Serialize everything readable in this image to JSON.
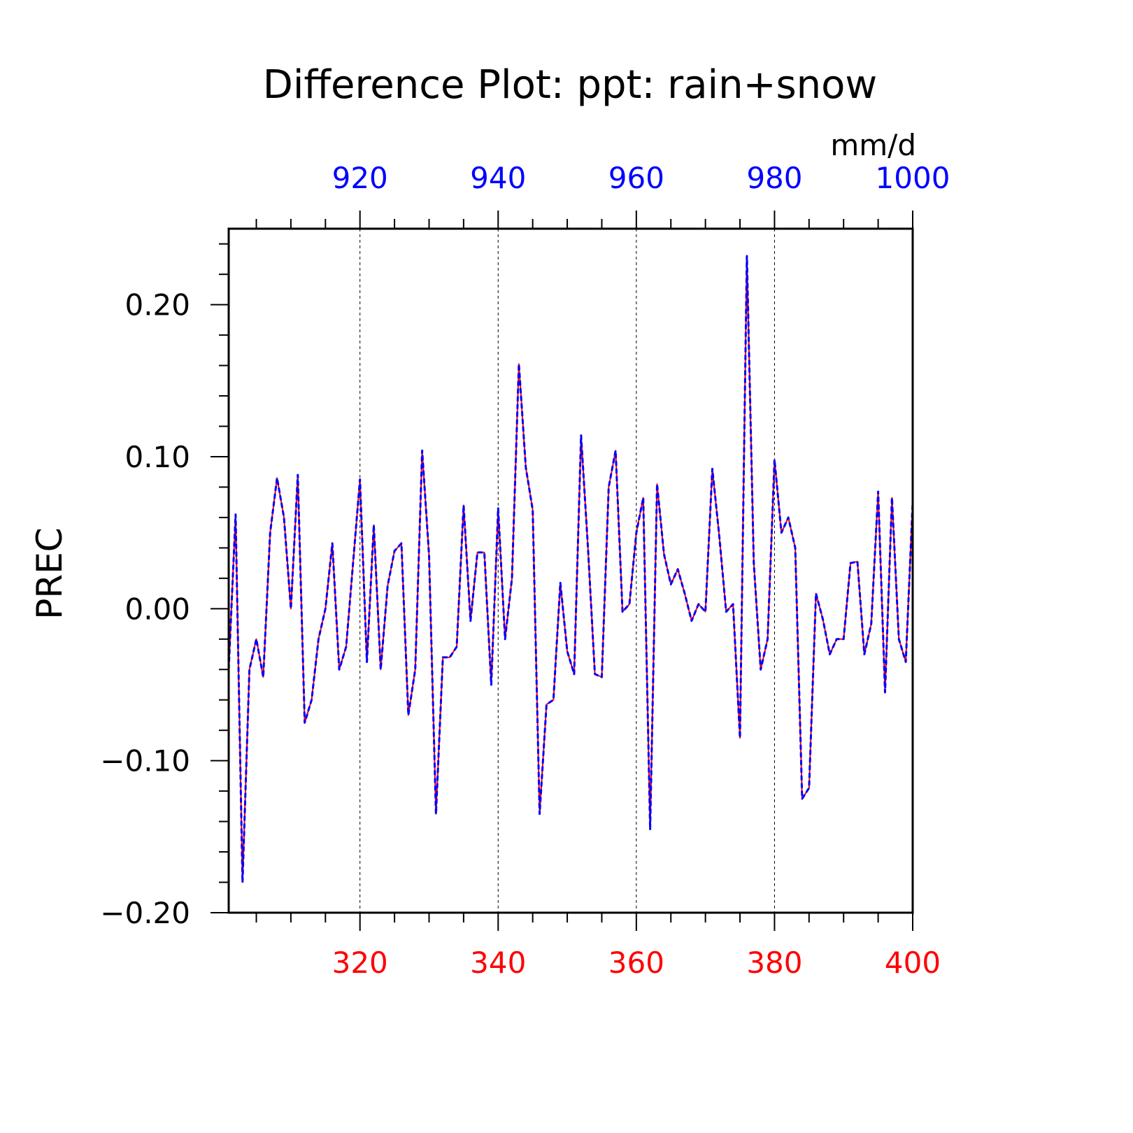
{
  "chart_data": {
    "type": "line",
    "title": "Difference Plot: ppt: rain+snow",
    "units": "mm/d",
    "ylabel": "PREC",
    "ylim": [
      -0.2,
      0.25
    ],
    "yticks": [
      "0.20",
      "0.10",
      "0.00",
      "−0.10",
      "−0.20"
    ],
    "x_bottom": {
      "range": [
        301,
        400
      ],
      "ticklabels": [
        "320",
        "340",
        "360",
        "380",
        "400"
      ],
      "color": "#ff0000"
    },
    "x_top": {
      "range": [
        901,
        1000
      ],
      "ticklabels": [
        "920",
        "940",
        "960",
        "980",
        "1000"
      ],
      "color": "#0000ff"
    },
    "grid": "vertical dashed at major x ticks",
    "series": [
      {
        "color": "#ff0000",
        "style": "solid",
        "x": [
          301,
          302,
          303,
          304,
          305,
          306,
          307,
          308,
          309,
          310,
          311,
          312,
          313,
          314,
          315,
          316,
          317,
          318,
          319,
          320,
          321,
          322,
          323,
          324,
          325,
          326,
          327,
          328,
          329,
          330,
          331,
          332,
          333,
          334,
          335,
          336,
          337,
          338,
          339,
          340,
          341,
          342,
          343,
          344,
          345,
          346,
          347,
          348,
          349,
          350,
          351,
          352,
          353,
          354,
          355,
          356,
          357,
          358,
          359,
          360,
          361,
          362,
          363,
          364,
          365,
          366,
          367,
          368,
          369,
          370,
          371,
          372,
          373,
          374,
          375,
          376,
          377,
          378,
          379,
          380,
          381,
          382,
          383,
          384,
          385,
          386,
          387,
          388,
          389,
          390,
          391,
          392,
          393,
          394,
          395,
          396,
          397,
          398,
          399,
          400
        ],
        "values": [
          -0.04,
          0.062,
          -0.18,
          -0.04,
          -0.02,
          -0.045,
          0.05,
          0.086,
          0.06,
          0.0,
          0.088,
          -0.075,
          -0.06,
          -0.02,
          0.0,
          0.043,
          -0.04,
          -0.025,
          0.03,
          0.085,
          -0.035,
          0.055,
          -0.04,
          0.015,
          0.038,
          0.043,
          -0.07,
          -0.04,
          0.104,
          0.035,
          -0.135,
          -0.032,
          -0.032,
          -0.025,
          0.068,
          -0.008,
          0.037,
          0.037,
          -0.05,
          0.066,
          -0.02,
          0.02,
          0.161,
          0.093,
          0.065,
          -0.135,
          -0.063,
          -0.06,
          0.017,
          -0.028,
          -0.043,
          0.114,
          0.04,
          -0.043,
          -0.045,
          0.08,
          0.104,
          -0.002,
          0.003,
          0.05,
          0.073,
          -0.145,
          0.082,
          0.036,
          0.016,
          0.026,
          0.01,
          -0.008,
          0.003,
          -0.002,
          0.092,
          0.048,
          -0.002,
          0.003,
          -0.085,
          0.232,
          0.03,
          -0.04,
          -0.02,
          0.098,
          0.05,
          0.06,
          0.04,
          -0.125,
          -0.118,
          0.01,
          -0.007,
          -0.03,
          -0.02,
          -0.02,
          0.03,
          0.031,
          -0.03,
          -0.01,
          0.077,
          -0.055,
          0.073,
          -0.02,
          -0.035,
          0.07
        ]
      },
      {
        "color": "#0000ff",
        "style": "dashed",
        "x": [
          301,
          302,
          303,
          304,
          305,
          306,
          307,
          308,
          309,
          310,
          311,
          312,
          313,
          314,
          315,
          316,
          317,
          318,
          319,
          320,
          321,
          322,
          323,
          324,
          325,
          326,
          327,
          328,
          329,
          330,
          331,
          332,
          333,
          334,
          335,
          336,
          337,
          338,
          339,
          340,
          341,
          342,
          343,
          344,
          345,
          346,
          347,
          348,
          349,
          350,
          351,
          352,
          353,
          354,
          355,
          356,
          357,
          358,
          359,
          360,
          361,
          362,
          363,
          364,
          365,
          366,
          367,
          368,
          369,
          370,
          371,
          372,
          373,
          374,
          375,
          376,
          377,
          378,
          379,
          380,
          381,
          382,
          383,
          384,
          385,
          386,
          387,
          388,
          389,
          390,
          391,
          392,
          393,
          394,
          395,
          396,
          397,
          398,
          399,
          400
        ],
        "values": [
          -0.04,
          0.062,
          -0.18,
          -0.04,
          -0.02,
          -0.045,
          0.05,
          0.086,
          0.06,
          0.0,
          0.088,
          -0.075,
          -0.06,
          -0.02,
          0.0,
          0.043,
          -0.04,
          -0.025,
          0.03,
          0.085,
          -0.035,
          0.055,
          -0.04,
          0.015,
          0.038,
          0.043,
          -0.07,
          -0.04,
          0.104,
          0.035,
          -0.135,
          -0.032,
          -0.032,
          -0.025,
          0.068,
          -0.008,
          0.037,
          0.037,
          -0.05,
          0.066,
          -0.02,
          0.02,
          0.161,
          0.093,
          0.065,
          -0.135,
          -0.063,
          -0.06,
          0.017,
          -0.028,
          -0.043,
          0.114,
          0.04,
          -0.043,
          -0.045,
          0.08,
          0.104,
          -0.002,
          0.003,
          0.05,
          0.073,
          -0.145,
          0.082,
          0.036,
          0.016,
          0.026,
          0.01,
          -0.008,
          0.003,
          -0.002,
          0.092,
          0.048,
          -0.002,
          0.003,
          -0.085,
          0.232,
          0.03,
          -0.04,
          -0.02,
          0.098,
          0.05,
          0.06,
          0.04,
          -0.125,
          -0.118,
          0.01,
          -0.007,
          -0.03,
          -0.02,
          -0.02,
          0.03,
          0.031,
          -0.03,
          -0.01,
          0.077,
          -0.055,
          0.073,
          -0.02,
          -0.035,
          0.07
        ]
      }
    ]
  }
}
